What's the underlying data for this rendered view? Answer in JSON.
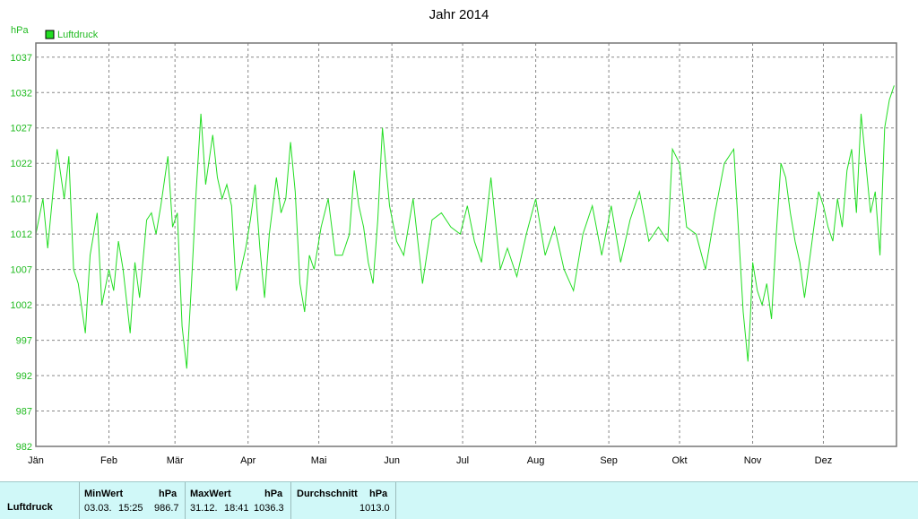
{
  "chart_data": {
    "type": "line",
    "title": "Jahr 2014",
    "ylabel": "hPa",
    "legend": [
      {
        "name": "Luftdruck",
        "color": "#22dd22"
      }
    ],
    "legend_position": "top-left",
    "ylim": [
      982,
      1039
    ],
    "yticks": [
      982,
      987,
      992,
      997,
      1002,
      1007,
      1012,
      1017,
      1022,
      1027,
      1032,
      1037
    ],
    "months": [
      "Jän",
      "Feb",
      "Mär",
      "Apr",
      "Mai",
      "Jun",
      "Jul",
      "Aug",
      "Sep",
      "Okt",
      "Nov",
      "Dez"
    ],
    "grid": true,
    "series": [
      {
        "name": "Luftdruck",
        "color": "#22dd22",
        "x_day": [
          0,
          3,
          5,
          7,
          9,
          12,
          14,
          16,
          18,
          21,
          23,
          26,
          28,
          31,
          33,
          35,
          37,
          40,
          42,
          44,
          47,
          49,
          51,
          53,
          56,
          58,
          60,
          62,
          64,
          66,
          68,
          70,
          72,
          75,
          77,
          79,
          81,
          83,
          85,
          87,
          89,
          91,
          93,
          95,
          97,
          99,
          102,
          104,
          106,
          108,
          110,
          112,
          114,
          116,
          118,
          121,
          124,
          127,
          130,
          133,
          135,
          137,
          139,
          141,
          143,
          145,
          147,
          150,
          153,
          156,
          160,
          164,
          168,
          172,
          176,
          180,
          183,
          186,
          189,
          193,
          197,
          200,
          204,
          208,
          212,
          216,
          220,
          224,
          228,
          232,
          236,
          240,
          244,
          248,
          252,
          256,
          260,
          264,
          268,
          270,
          273,
          276,
          280,
          284,
          288,
          292,
          296,
          300,
          302,
          303,
          304,
          306,
          308,
          310,
          312,
          314,
          316,
          318,
          320,
          322,
          324,
          326,
          328,
          330,
          332,
          334,
          336,
          338,
          340,
          342,
          344,
          346,
          348,
          350,
          352,
          354,
          356,
          358,
          360,
          362,
          364
        ],
        "y_hpa": [
          1012,
          1017,
          1010,
          1017,
          1024,
          1017,
          1023,
          1007,
          1005,
          998,
          1009,
          1015,
          1002,
          1007,
          1004,
          1011,
          1007,
          998,
          1008,
          1003,
          1014,
          1015,
          1012,
          1016,
          1023,
          1013,
          1015,
          999,
          993,
          1005,
          1018,
          1029,
          1019,
          1026,
          1020,
          1017,
          1019,
          1016,
          1004,
          1007,
          1010,
          1014,
          1019,
          1010,
          1003,
          1012,
          1020,
          1015,
          1017,
          1025,
          1018,
          1005,
          1001,
          1009,
          1007,
          1013,
          1017,
          1009,
          1009,
          1012,
          1021,
          1016,
          1013,
          1008,
          1005,
          1014,
          1027,
          1016,
          1011,
          1009,
          1017,
          1005,
          1014,
          1015,
          1013,
          1012,
          1016,
          1011,
          1008,
          1020,
          1007,
          1010,
          1006,
          1012,
          1017,
          1009,
          1013,
          1007,
          1004,
          1012,
          1016,
          1009,
          1016,
          1008,
          1014,
          1018,
          1011,
          1013,
          1011,
          1024,
          1022,
          1013,
          1012,
          1007,
          1015,
          1022,
          1024,
          1001,
          994,
          1000,
          1008,
          1004,
          1002,
          1005,
          1000,
          1012,
          1022,
          1020,
          1015,
          1011,
          1008,
          1003,
          1008,
          1013,
          1018,
          1016,
          1013,
          1011,
          1017,
          1013,
          1021,
          1024,
          1015,
          1029,
          1022,
          1015,
          1018,
          1009,
          1027,
          1031,
          1033
        ]
      }
    ]
  },
  "stats": {
    "row_label": "Luftdruck",
    "row_label2": "Luftdruck",
    "min_header": "MinWert",
    "max_header": "MaxWert",
    "avg_header": "Durchschnitt",
    "unit": "hPa",
    "min_date": "03.03.",
    "min_time": "15:25",
    "min_value": "986.7",
    "max_date": "31.12.",
    "max_time": "18:41",
    "max_value": "1036.3",
    "avg_value": "1013.0"
  }
}
